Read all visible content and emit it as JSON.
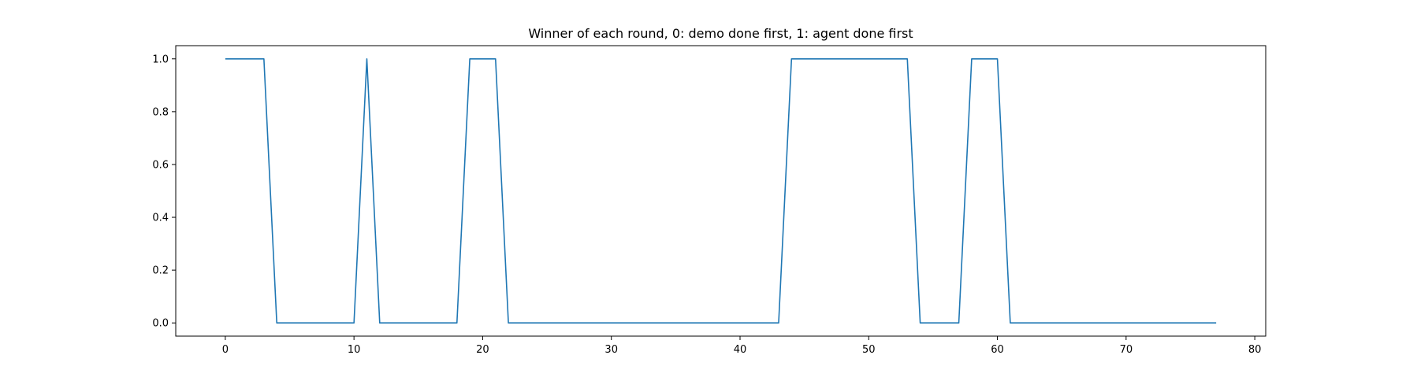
{
  "chart_data": {
    "type": "line",
    "title": "Winner of each round, 0: demo done first, 1: agent done first",
    "xlabel": "",
    "ylabel": "",
    "xlim": [
      -3.85,
      80.85
    ],
    "ylim": [
      -0.05,
      1.05
    ],
    "xticks": [
      0,
      10,
      20,
      30,
      40,
      50,
      60,
      70,
      80
    ],
    "yticks": [
      0.0,
      0.2,
      0.4,
      0.6,
      0.8,
      1.0
    ],
    "xtick_labels": [
      "0",
      "10",
      "20",
      "30",
      "40",
      "50",
      "60",
      "70",
      "80"
    ],
    "ytick_labels": [
      "0.0",
      "0.2",
      "0.4",
      "0.6",
      "0.8",
      "1.0"
    ],
    "grid": false,
    "legend": "none",
    "series": [
      {
        "color": "#1f77b4",
        "x": [
          0,
          1,
          2,
          3,
          4,
          5,
          6,
          7,
          8,
          9,
          10,
          11,
          12,
          13,
          14,
          15,
          16,
          17,
          18,
          19,
          20,
          21,
          22,
          23,
          24,
          25,
          26,
          27,
          28,
          29,
          30,
          31,
          32,
          33,
          34,
          35,
          36,
          37,
          38,
          39,
          40,
          41,
          42,
          43,
          44,
          45,
          46,
          47,
          48,
          49,
          50,
          51,
          52,
          53,
          54,
          55,
          56,
          57,
          58,
          59,
          60,
          61,
          62,
          63,
          64,
          65,
          66,
          67,
          68,
          69,
          70,
          71,
          72,
          73,
          74,
          75,
          76,
          77
        ],
        "values": [
          1,
          1,
          1,
          1,
          0,
          0,
          0,
          0,
          0,
          0,
          0,
          1,
          0,
          0,
          0,
          0,
          0,
          0,
          0,
          1,
          1,
          1,
          0,
          0,
          0,
          0,
          0,
          0,
          0,
          0,
          0,
          0,
          0,
          0,
          0,
          0,
          0,
          0,
          0,
          0,
          0,
          0,
          0,
          0,
          1,
          1,
          1,
          1,
          1,
          1,
          1,
          1,
          1,
          1,
          0,
          0,
          0,
          0,
          1,
          1,
          1,
          0,
          0,
          0,
          0,
          0,
          0,
          0,
          0,
          0,
          0,
          0,
          0,
          0,
          0,
          0,
          0,
          0
        ]
      }
    ]
  }
}
